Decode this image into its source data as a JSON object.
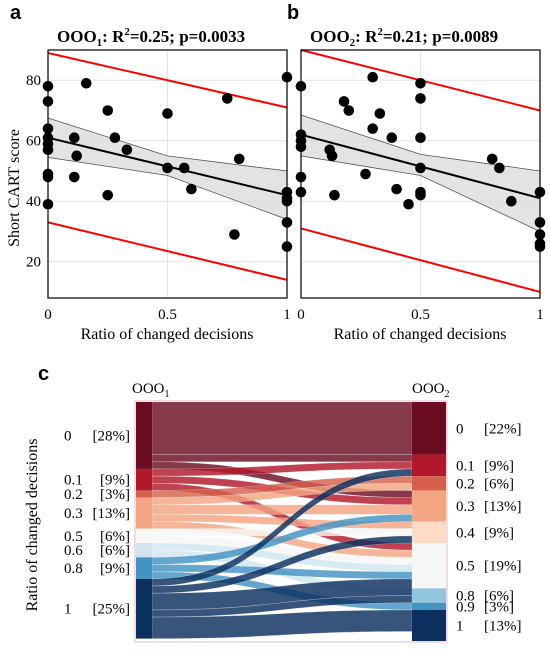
{
  "panels": {
    "a": {
      "letter": "a",
      "title_main": "OOO",
      "title_sub": "1",
      "title_r": ": R",
      "title_sup": "2",
      "title_rest": "=0.25; p=0.0033"
    },
    "b": {
      "letter": "b",
      "title_main": "OOO",
      "title_sub": "2",
      "title_r": ": R",
      "title_sup": "2",
      "title_rest": "=0.21; p=0.0089"
    },
    "c": {
      "letter": "c",
      "left_title_main": "OOO",
      "left_title_sub": "1",
      "right_title_main": "OOO",
      "right_title_sub": "2",
      "ylabel": "Ratio of changed decisions"
    }
  },
  "shared_axes": {
    "xlabel": "Ratio of changed decisions",
    "ylabel": "Short CART score",
    "xticks": [
      "0",
      "0.5",
      "1"
    ],
    "yticks": [
      "20",
      "40",
      "60",
      "80"
    ]
  },
  "chart_data": [
    {
      "type": "scatter",
      "panel": "a",
      "title": "OOO1: R2=0.25; p=0.0033",
      "xlabel": "Ratio of changed decisions",
      "ylabel": "Short CART score",
      "xlim": [
        0,
        1
      ],
      "ylim": [
        8,
        90
      ],
      "grid": true,
      "points": [
        {
          "x": 0.0,
          "y": 78
        },
        {
          "x": 0.0,
          "y": 73
        },
        {
          "x": 0.0,
          "y": 64
        },
        {
          "x": 0.0,
          "y": 61
        },
        {
          "x": 0.0,
          "y": 59
        },
        {
          "x": 0.0,
          "y": 57
        },
        {
          "x": 0.0,
          "y": 49
        },
        {
          "x": 0.0,
          "y": 48
        },
        {
          "x": 0.0,
          "y": 39
        },
        {
          "x": 0.11,
          "y": 61
        },
        {
          "x": 0.12,
          "y": 55
        },
        {
          "x": 0.11,
          "y": 48
        },
        {
          "x": 0.16,
          "y": 79
        },
        {
          "x": 0.25,
          "y": 70
        },
        {
          "x": 0.25,
          "y": 42
        },
        {
          "x": 0.28,
          "y": 61
        },
        {
          "x": 0.33,
          "y": 57
        },
        {
          "x": 0.5,
          "y": 69
        },
        {
          "x": 0.5,
          "y": 51
        },
        {
          "x": 0.57,
          "y": 51
        },
        {
          "x": 0.6,
          "y": 44
        },
        {
          "x": 0.75,
          "y": 74
        },
        {
          "x": 0.78,
          "y": 29
        },
        {
          "x": 0.8,
          "y": 54
        },
        {
          "x": 1.0,
          "y": 81
        },
        {
          "x": 1.0,
          "y": 43
        },
        {
          "x": 1.0,
          "y": 41
        },
        {
          "x": 1.0,
          "y": 40
        },
        {
          "x": 1.0,
          "y": 33
        },
        {
          "x": 1.0,
          "y": 25
        }
      ],
      "fit": {
        "x": [
          0,
          1
        ],
        "y": [
          61,
          42
        ]
      },
      "confidence_band": {
        "x": [
          0,
          0.5,
          1
        ],
        "lower": [
          54.5,
          48.5,
          34
        ],
        "upper": [
          67.5,
          55,
          50
        ]
      },
      "prediction_interval": {
        "x": [
          0,
          1
        ],
        "lower": [
          33,
          14
        ],
        "upper": [
          89,
          71
        ]
      }
    },
    {
      "type": "scatter",
      "panel": "b",
      "title": "OOO2: R2=0.21; p=0.0089",
      "xlabel": "Ratio of changed decisions",
      "ylabel": "Short CART score",
      "xlim": [
        0,
        1
      ],
      "ylim": [
        8,
        90
      ],
      "grid": true,
      "points": [
        {
          "x": 0.0,
          "y": 78
        },
        {
          "x": 0.0,
          "y": 62
        },
        {
          "x": 0.0,
          "y": 60
        },
        {
          "x": 0.0,
          "y": 58
        },
        {
          "x": 0.0,
          "y": 48
        },
        {
          "x": 0.0,
          "y": 43
        },
        {
          "x": 0.12,
          "y": 57
        },
        {
          "x": 0.13,
          "y": 55
        },
        {
          "x": 0.14,
          "y": 42
        },
        {
          "x": 0.18,
          "y": 73
        },
        {
          "x": 0.2,
          "y": 70
        },
        {
          "x": 0.27,
          "y": 49
        },
        {
          "x": 0.3,
          "y": 81
        },
        {
          "x": 0.3,
          "y": 64
        },
        {
          "x": 0.33,
          "y": 69
        },
        {
          "x": 0.38,
          "y": 61
        },
        {
          "x": 0.4,
          "y": 44
        },
        {
          "x": 0.45,
          "y": 39
        },
        {
          "x": 0.5,
          "y": 79
        },
        {
          "x": 0.5,
          "y": 74
        },
        {
          "x": 0.5,
          "y": 61
        },
        {
          "x": 0.5,
          "y": 51
        },
        {
          "x": 0.5,
          "y": 43
        },
        {
          "x": 0.5,
          "y": 42
        },
        {
          "x": 0.8,
          "y": 54
        },
        {
          "x": 0.83,
          "y": 51
        },
        {
          "x": 0.88,
          "y": 40
        },
        {
          "x": 1.0,
          "y": 43
        },
        {
          "x": 1.0,
          "y": 33
        },
        {
          "x": 1.0,
          "y": 29
        },
        {
          "x": 1.0,
          "y": 26
        },
        {
          "x": 1.0,
          "y": 25
        }
      ],
      "fit": {
        "x": [
          0,
          1
        ],
        "y": [
          62,
          41
        ]
      },
      "confidence_band": {
        "x": [
          0,
          0.5,
          1
        ],
        "lower": [
          55,
          48.5,
          30
        ],
        "upper": [
          68.5,
          55.5,
          50
        ]
      },
      "prediction_interval": {
        "x": [
          0,
          1
        ],
        "lower": [
          31,
          10
        ],
        "upper": [
          90,
          70
        ]
      }
    },
    {
      "type": "sankey",
      "panel": "c",
      "title": "",
      "ylabel": "Ratio of changed decisions",
      "left_axis": "OOO1",
      "right_axis": "OOO2",
      "left_nodes": [
        {
          "label": "0",
          "percent": "[28%]",
          "share": 28,
          "color": "#6b0d22"
        },
        {
          "label": "0.1",
          "percent": "[9%]",
          "share": 9,
          "color": "#b2182b"
        },
        {
          "label": "0.2",
          "percent": "[3%]",
          "share": 3,
          "color": "#d6604d"
        },
        {
          "label": "0.3",
          "percent": "[13%]",
          "share": 13,
          "color": "#f4a582"
        },
        {
          "label": "0.5",
          "percent": "[6%]",
          "share": 6,
          "color": "#f7f7f7"
        },
        {
          "label": "0.6",
          "percent": "[6%]",
          "share": 6,
          "color": "#d1e5f0"
        },
        {
          "label": "0.8",
          "percent": "[9%]",
          "share": 9,
          "color": "#4393c3"
        },
        {
          "label": "1",
          "percent": "[25%]",
          "share": 25,
          "color": "#0b2f5e"
        }
      ],
      "right_nodes": [
        {
          "label": "0",
          "percent": "[22%]",
          "share": 22,
          "color": "#6b0d22"
        },
        {
          "label": "0.1",
          "percent": "[9%]",
          "share": 9,
          "color": "#b2182b"
        },
        {
          "label": "0.2",
          "percent": "[6%]",
          "share": 6,
          "color": "#d6604d"
        },
        {
          "label": "0.3",
          "percent": "[13%]",
          "share": 13,
          "color": "#f4a582"
        },
        {
          "label": "0.4",
          "percent": "[9%]",
          "share": 9,
          "color": "#fddbc7"
        },
        {
          "label": "0.5",
          "percent": "[19%]",
          "share": 19,
          "color": "#f7f7f7"
        },
        {
          "label": "0.8",
          "percent": "[6%]",
          "share": 6,
          "color": "#92c5de"
        },
        {
          "label": "0.9",
          "percent": "[3%]",
          "share": 3,
          "color": "#4393c3"
        },
        {
          "label": "1",
          "percent": "[13%]",
          "share": 13,
          "color": "#0b2f5e"
        }
      ],
      "flows": [
        {
          "from": "0",
          "to": "0",
          "share": 22
        },
        {
          "from": "0",
          "to": "0.1",
          "share": 3
        },
        {
          "from": "0",
          "to": "0.3",
          "share": 3
        },
        {
          "from": "0.1",
          "to": "0.1",
          "share": 3
        },
        {
          "from": "0.1",
          "to": "0.3",
          "share": 3
        },
        {
          "from": "0.1",
          "to": "0.5",
          "share": 3
        },
        {
          "from": "0.2",
          "to": "0.2",
          "share": 3
        },
        {
          "from": "0.3",
          "to": "0.2",
          "share": 3
        },
        {
          "from": "0.3",
          "to": "0.3",
          "share": 4
        },
        {
          "from": "0.3",
          "to": "0.4",
          "share": 3
        },
        {
          "from": "0.3",
          "to": "0.5",
          "share": 3
        },
        {
          "from": "0.5",
          "to": "0.4",
          "share": 3
        },
        {
          "from": "0.5",
          "to": "0.5",
          "share": 3
        },
        {
          "from": "0.6",
          "to": "0.5",
          "share": 3
        },
        {
          "from": "0.6",
          "to": "0.8",
          "share": 3
        },
        {
          "from": "0.8",
          "to": "0.3",
          "share": 3
        },
        {
          "from": "0.8",
          "to": "0.5",
          "share": 3
        },
        {
          "from": "0.8",
          "to": "0.9",
          "share": 3
        },
        {
          "from": "1",
          "to": "0.1",
          "share": 3
        },
        {
          "from": "1",
          "to": "0.4",
          "share": 3
        },
        {
          "from": "1",
          "to": "0.5",
          "share": 7
        },
        {
          "from": "1",
          "to": "0.8",
          "share": 3
        },
        {
          "from": "1",
          "to": "1",
          "share": 9
        }
      ],
      "colors": {
        "regression_line": "#000000",
        "prediction_interval": "#ff0000",
        "band_fill": "#d9d9d9"
      }
    }
  ]
}
